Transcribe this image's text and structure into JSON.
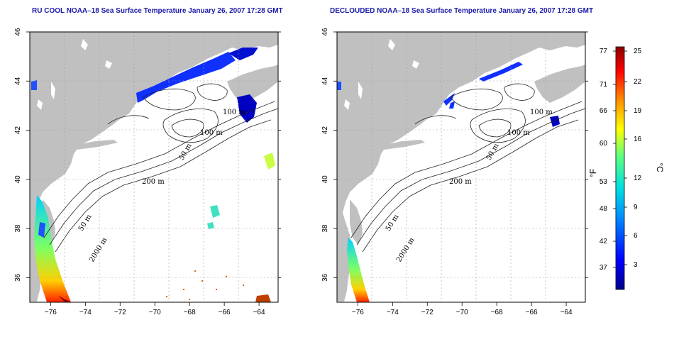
{
  "panels": [
    {
      "id": "left",
      "title": "RU COOL NOAA–18 Sea Surface Temperature January 26, 2007 17:28 GMT",
      "contour_labels": [
        "100 m",
        "100 m",
        "50 m",
        "200 m",
        "50 m",
        "2000 m"
      ]
    },
    {
      "id": "right",
      "title": "DECLOUDED NOAA–18 Sea Surface Temperature January 26, 2007 17:28 GMT",
      "contour_labels": [
        "100 m",
        "100 m",
        "50 m",
        "200 m",
        "50 m",
        "2000 m"
      ]
    }
  ],
  "axes": {
    "x_ticks": [
      "−76",
      "−74",
      "−72",
      "−70",
      "−68",
      "−66",
      "−64"
    ],
    "y_ticks": [
      "36",
      "38",
      "40",
      "42",
      "44",
      "46"
    ],
    "lon_range": [
      -77.2,
      -62.9
    ],
    "lat_range": [
      35.0,
      46.0
    ]
  },
  "colorbar": {
    "fahrenheit_ticks": [
      "77",
      "71",
      "66",
      "60",
      "53",
      "48",
      "42",
      "37"
    ],
    "celsius_ticks": [
      "25",
      "22",
      "19",
      "16",
      "12",
      "9",
      "6",
      "3"
    ],
    "fahrenheit_label": "°F",
    "celsius_label": "°C"
  },
  "colors": {
    "land": "#c0c0c0",
    "ocean": "#ffffff",
    "title": "#1a1aa8",
    "cold": "#00008b",
    "warm": "#8b0000"
  }
}
